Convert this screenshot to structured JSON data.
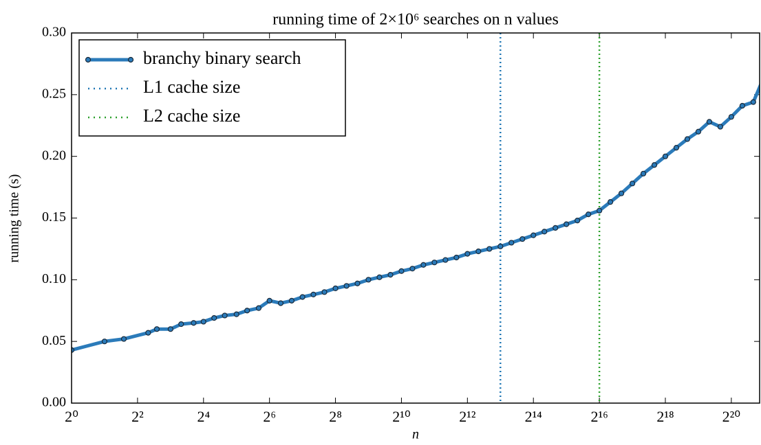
{
  "chart_data": {
    "type": "line",
    "title": "running time of 2×10⁶ searches on n values",
    "xlabel": "n",
    "ylabel": "running time (s)",
    "xscale": "log2",
    "x": [
      1,
      2,
      3,
      5,
      6,
      8,
      10,
      13,
      16,
      20,
      25,
      32,
      40,
      51,
      64,
      81,
      102,
      128,
      161,
      203,
      256,
      323,
      406,
      512,
      645,
      813,
      1024,
      1290,
      1625,
      2048,
      2580,
      3251,
      4096,
      5161,
      6502,
      8192,
      10321,
      13004,
      16384,
      20643,
      26008,
      32768,
      41285,
      52016,
      65536,
      82570,
      104032,
      131072,
      165140,
      208064,
      262144,
      330281,
      416128,
      524288,
      660561,
      832255,
      1048576,
      1321123,
      1664510,
      2097152
    ],
    "series": [
      {
        "name": "branchy binary search",
        "color": "#2b7bba",
        "values": [
          0.043,
          0.05,
          0.052,
          0.057,
          0.06,
          0.06,
          0.064,
          0.065,
          0.066,
          0.069,
          0.071,
          0.072,
          0.075,
          0.077,
          0.083,
          0.081,
          0.083,
          0.086,
          0.088,
          0.09,
          0.093,
          0.095,
          0.097,
          0.1,
          0.102,
          0.104,
          0.107,
          0.109,
          0.112,
          0.114,
          0.116,
          0.118,
          0.121,
          0.123,
          0.125,
          0.127,
          0.13,
          0.133,
          0.136,
          0.139,
          0.142,
          0.145,
          0.148,
          0.153,
          0.156,
          0.163,
          0.17,
          0.178,
          0.186,
          0.193,
          0.2,
          0.207,
          0.214,
          0.22,
          0.228,
          0.224,
          0.232,
          0.241,
          0.244,
          0.265
        ]
      }
    ],
    "vlines": [
      {
        "name": "L1 cache size",
        "x": 8192,
        "color": "#1f77b4"
      },
      {
        "name": "L2 cache size",
        "x": 65536,
        "color": "#2ca02c"
      }
    ],
    "xlim": [
      1,
      1900000
    ],
    "xticks": [
      {
        "value": 1,
        "label": "2⁰"
      },
      {
        "value": 4,
        "label": "2²"
      },
      {
        "value": 16,
        "label": "2⁴"
      },
      {
        "value": 64,
        "label": "2⁶"
      },
      {
        "value": 256,
        "label": "2⁸"
      },
      {
        "value": 1024,
        "label": "2¹⁰"
      },
      {
        "value": 4096,
        "label": "2¹²"
      },
      {
        "value": 16384,
        "label": "2¹⁴"
      },
      {
        "value": 65536,
        "label": "2¹⁶"
      },
      {
        "value": 262144,
        "label": "2¹⁸"
      },
      {
        "value": 1048576,
        "label": "2²⁰"
      }
    ],
    "ylim": [
      0,
      0.3
    ],
    "yticks": [
      {
        "value": 0,
        "label": "0.00"
      },
      0.05,
      {
        "value": 0.1,
        "label": "0.10"
      },
      0.15,
      {
        "value": 0.2,
        "label": "0.20"
      },
      0.25,
      {
        "value": 0.3,
        "label": "0.30"
      }
    ],
    "legend": "upper left"
  }
}
